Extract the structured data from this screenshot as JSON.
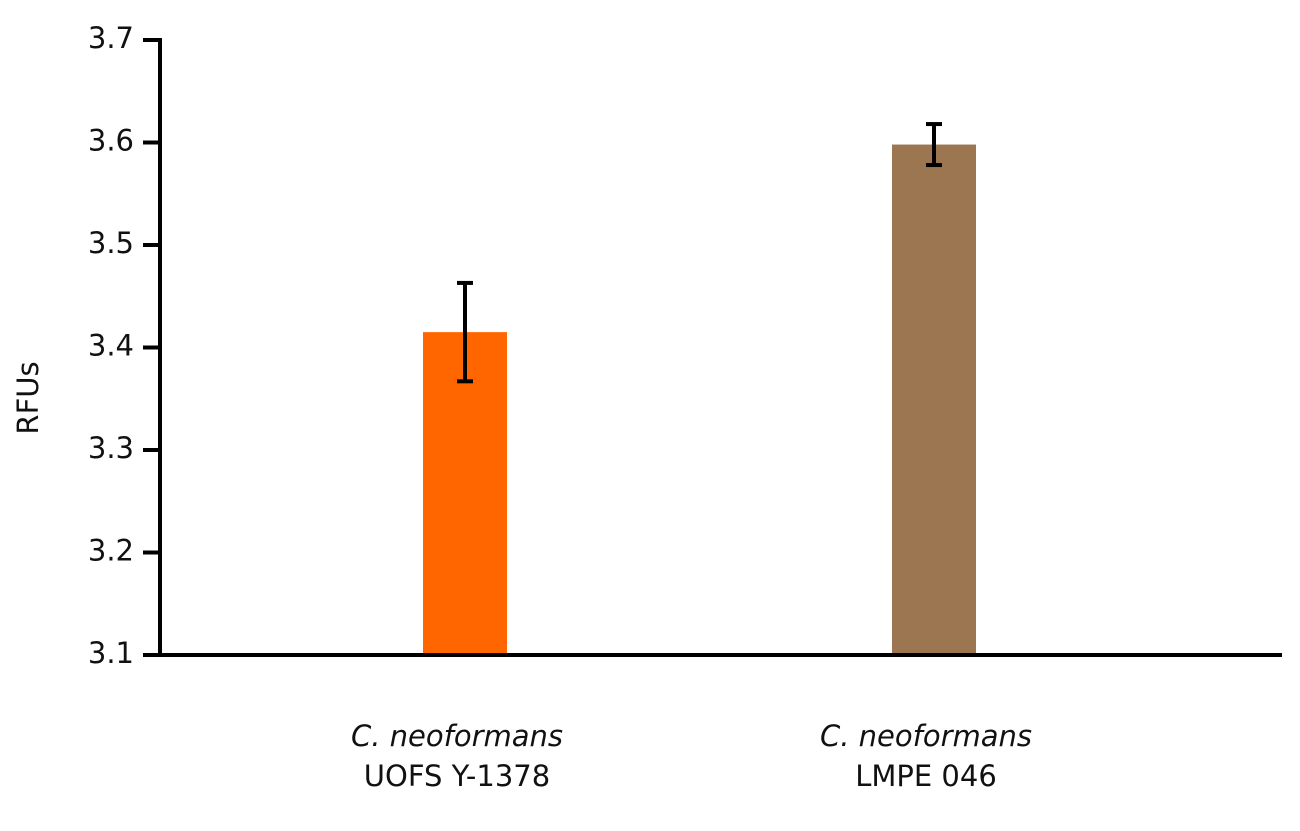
{
  "chart_data": {
    "type": "bar",
    "y_label": "RFUs",
    "categories": [
      [
        "C. neoformans",
        "UOFS Y-1378"
      ],
      [
        "C. neoformans",
        "LMPE 046"
      ]
    ],
    "values": [
      3.415,
      3.598
    ],
    "errors": [
      0.048,
      0.02
    ],
    "colors": [
      "#ff6600",
      "#9b7650"
    ],
    "ylim": [
      3.1,
      3.7
    ],
    "yticks": [
      3.1,
      3.2,
      3.3,
      3.4,
      3.5,
      3.6,
      3.7
    ],
    "grid": false
  }
}
